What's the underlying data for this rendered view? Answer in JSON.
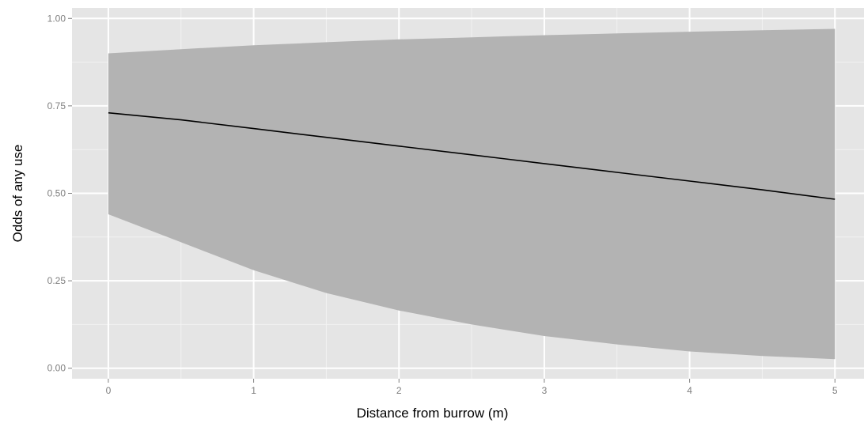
{
  "chart_data": {
    "type": "line",
    "title": "",
    "xlabel": "Distance from burrow (m)",
    "ylabel": "Odds of any use",
    "xlim": [
      -0.25,
      5.2
    ],
    "ylim": [
      -0.03,
      1.03
    ],
    "x_ticks": [
      0,
      1,
      2,
      3,
      4,
      5
    ],
    "x_tick_labels": [
      "0",
      "1",
      "2",
      "3",
      "4",
      "5"
    ],
    "y_ticks": [
      0,
      0.25,
      0.5,
      0.75,
      1.0
    ],
    "y_tick_labels": [
      "0.00",
      "0.25",
      "0.50",
      "0.75",
      "1.00"
    ],
    "grid": true,
    "legend": "none",
    "series": [
      {
        "x": [
          0,
          0.5,
          1,
          1.5,
          2,
          2.5,
          3,
          3.5,
          4,
          4.5,
          5
        ],
        "y": [
          0.73,
          0.71,
          0.685,
          0.66,
          0.635,
          0.61,
          0.585,
          0.56,
          0.535,
          0.51,
          0.483
        ],
        "lower": [
          0.44,
          0.36,
          0.28,
          0.215,
          0.165,
          0.125,
          0.092,
          0.068,
          0.048,
          0.035,
          0.026
        ],
        "upper": [
          0.9,
          0.912,
          0.923,
          0.932,
          0.94,
          0.946,
          0.952,
          0.957,
          0.962,
          0.966,
          0.97
        ]
      }
    ],
    "colors": {
      "panel": "#e5e5e5",
      "grid_major": "#ffffff",
      "grid_minor": "#f2f2f2",
      "ribbon": "#b3b3b3",
      "line": "#000000",
      "tick": "#7f7f7f"
    }
  }
}
